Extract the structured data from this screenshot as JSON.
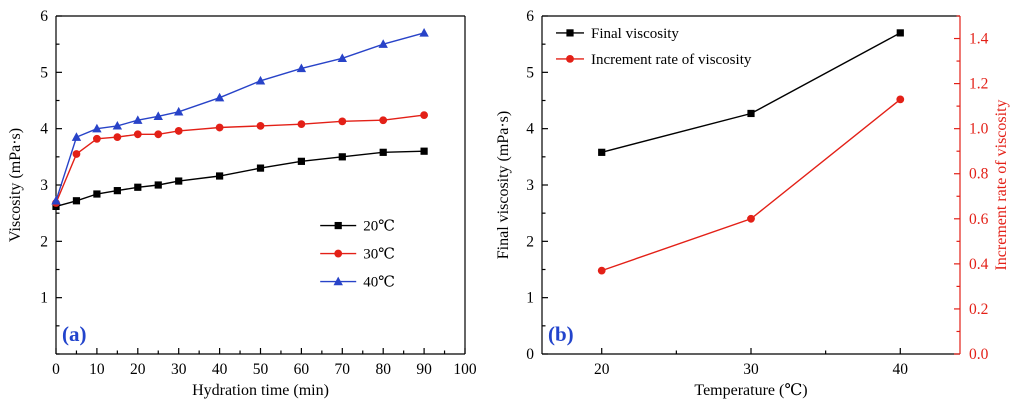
{
  "figure": {
    "description": "Two-panel line chart figure",
    "panels": [
      {
        "name": "panel-a",
        "label": "(a)"
      },
      {
        "name": "panel-b",
        "label": "(b)"
      }
    ]
  },
  "chart_data": [
    {
      "type": "line",
      "panel_label": "(a)",
      "title": "",
      "xlabel": "Hydration time (min)",
      "ylabel": "Viscosity (mPa·s)",
      "xlim": [
        0,
        100
      ],
      "ylim": [
        0,
        6
      ],
      "xticks": [
        0,
        10,
        20,
        30,
        40,
        50,
        60,
        70,
        80,
        90,
        100
      ],
      "yticks": [
        1,
        2,
        3,
        4,
        5,
        6
      ],
      "grid": false,
      "legend_position": "center-right",
      "label_color": "#2244cc",
      "x": [
        0,
        5,
        10,
        15,
        20,
        25,
        30,
        40,
        50,
        60,
        70,
        80,
        90
      ],
      "series": [
        {
          "name": "20℃",
          "marker": "square",
          "color": "#000000",
          "axis": "left",
          "values": [
            2.62,
            2.72,
            2.84,
            2.9,
            2.96,
            3.0,
            3.07,
            3.16,
            3.3,
            3.42,
            3.5,
            3.58,
            3.6
          ]
        },
        {
          "name": "30℃",
          "marker": "circle",
          "color": "#e32017",
          "axis": "left",
          "values": [
            2.68,
            3.55,
            3.82,
            3.85,
            3.9,
            3.9,
            3.96,
            4.02,
            4.05,
            4.08,
            4.13,
            4.15,
            4.24
          ]
        },
        {
          "name": "40℃",
          "marker": "triangle",
          "color": "#2843c8",
          "axis": "left",
          "values": [
            2.72,
            3.85,
            4.0,
            4.05,
            4.15,
            4.22,
            4.3,
            4.55,
            4.85,
            5.07,
            5.25,
            5.5,
            5.7
          ]
        }
      ]
    },
    {
      "type": "line",
      "panel_label": "(b)",
      "title": "",
      "xlabel": "Temperature (℃)",
      "ylabel": "Final viscosity (mPa·s)",
      "y2label": "Increment rate of viscosity",
      "y2color": "#e32017",
      "xlim": [
        16,
        44
      ],
      "ylim": [
        0,
        6
      ],
      "y2lim": [
        0,
        1.5
      ],
      "xticks": [
        20,
        30,
        40
      ],
      "yticks": [
        0,
        1,
        2,
        3,
        4,
        5,
        6
      ],
      "y2ticks": [
        0.0,
        0.2,
        0.4,
        0.6,
        0.8,
        1.0,
        1.2,
        1.4
      ],
      "grid": false,
      "legend_position": "top-left",
      "label_color": "#2244cc",
      "x": [
        20,
        30,
        40
      ],
      "series": [
        {
          "name": "Final viscosity",
          "marker": "square",
          "color": "#000000",
          "axis": "left",
          "values": [
            3.58,
            4.27,
            5.7
          ]
        },
        {
          "name": "Increment rate of viscosity",
          "marker": "circle",
          "color": "#e32017",
          "axis": "right",
          "values": [
            0.37,
            0.6,
            1.13
          ]
        }
      ]
    }
  ]
}
